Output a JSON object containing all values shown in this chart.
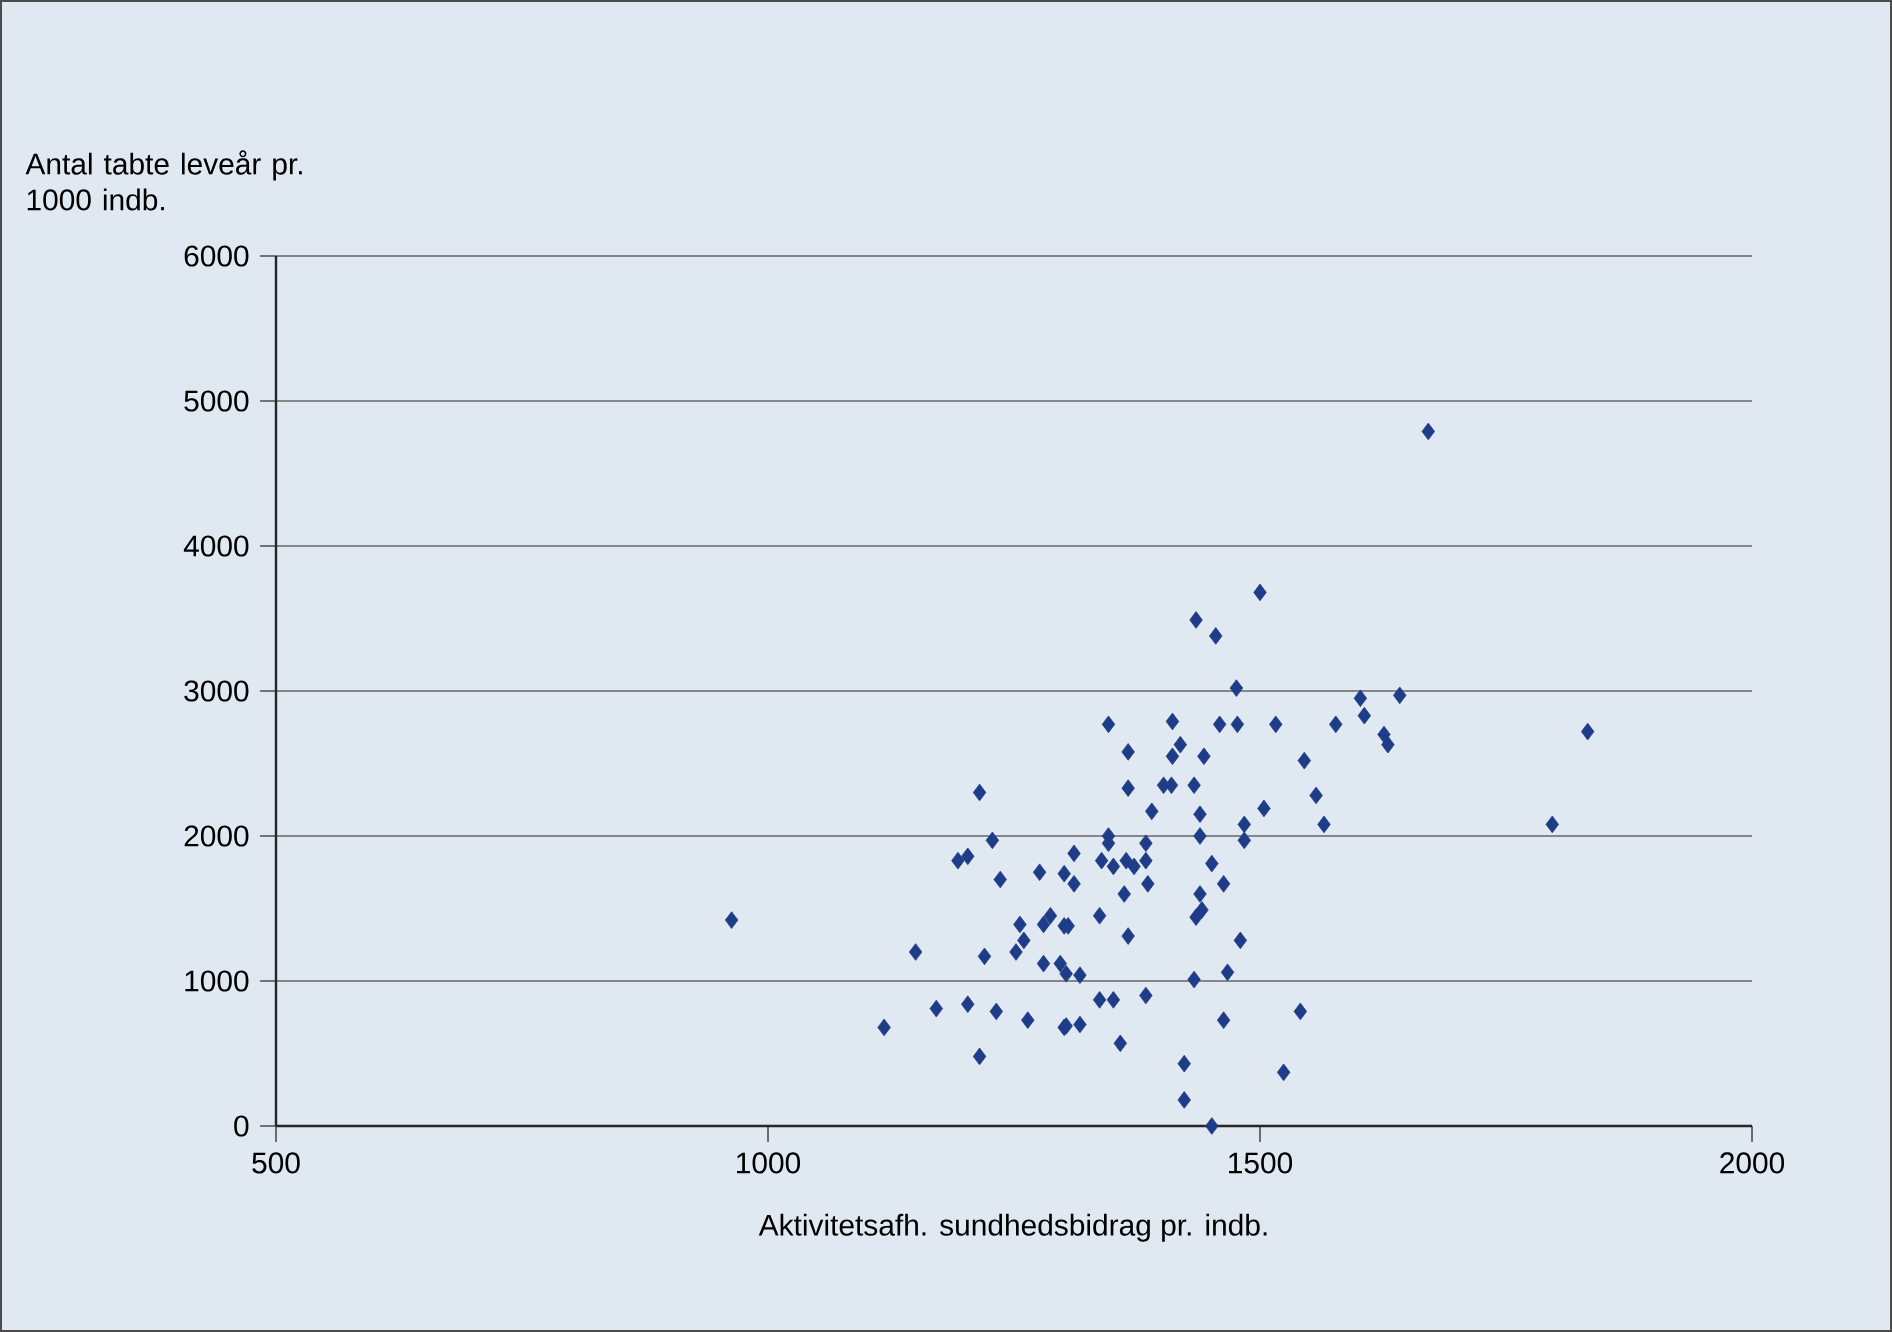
{
  "chart_data": {
    "type": "scatter",
    "xlabel": "Aktivitetsafh. sundhedsbidrag pr. indb.",
    "ylabel": "Antal tabte leveår pr. 1000 indb.",
    "xlim": [
      500,
      2000
    ],
    "ylim": [
      0,
      6000
    ],
    "xticks": [
      500,
      1000,
      1500,
      2000
    ],
    "yticks": [
      0,
      1000,
      2000,
      3000,
      4000,
      5000,
      6000
    ],
    "grid": "y",
    "marker": "diamond",
    "series": [
      {
        "color": "#1f3c88",
        "x": [
          963,
          1118,
          1150,
          1171,
          1193,
          1203,
          1203,
          1215,
          1215,
          1220,
          1228,
          1232,
          1236,
          1252,
          1256,
          1260,
          1264,
          1276,
          1280,
          1280,
          1287,
          1297,
          1301,
          1301,
          1301,
          1303,
          1303,
          1305,
          1311,
          1311,
          1317,
          1317,
          1337,
          1337,
          1339,
          1346,
          1346,
          1346,
          1351,
          1351,
          1358,
          1362,
          1364,
          1366,
          1366,
          1366,
          1372,
          1384,
          1384,
          1384,
          1386,
          1390,
          1402,
          1410,
          1411,
          1411,
          1419,
          1423,
          1423,
          1433,
          1433,
          1435,
          1435,
          1439,
          1439,
          1439,
          1441,
          1443,
          1451,
          1451,
          1455,
          1459,
          1463,
          1463,
          1467,
          1477,
          1476,
          1480,
          1484,
          1484,
          1500,
          1504,
          1516,
          1524,
          1541,
          1545,
          1557,
          1565,
          1577,
          1602,
          1606,
          1626,
          1630,
          1642,
          1671,
          1797,
          1833
        ],
        "values": [
          1420,
          680,
          1200,
          810,
          1830,
          1860,
          840,
          2300,
          480,
          1170,
          1970,
          790,
          1700,
          1200,
          1390,
          1280,
          730,
          1750,
          1390,
          1120,
          1450,
          1120,
          1740,
          680,
          1380,
          1050,
          690,
          1380,
          1880,
          1670,
          1040,
          700,
          1450,
          870,
          1830,
          2770,
          2000,
          1950,
          1790,
          870,
          570,
          1600,
          1830,
          2580,
          2330,
          1310,
          1790,
          1950,
          1830,
          900,
          1670,
          2170,
          2350,
          2350,
          2790,
          2550,
          2630,
          430,
          180,
          2350,
          1010,
          3490,
          1440,
          2150,
          2000,
          1600,
          1490,
          2550,
          1810,
          0,
          3380,
          2770,
          1670,
          730,
          1060,
          2770,
          3020,
          1280,
          2080,
          1970,
          3680,
          2190,
          2770,
          370,
          790,
          2520,
          2280,
          2080,
          2770,
          2950,
          2830,
          2700,
          2630,
          2970,
          4790,
          2080,
          2720
        ]
      }
    ]
  }
}
